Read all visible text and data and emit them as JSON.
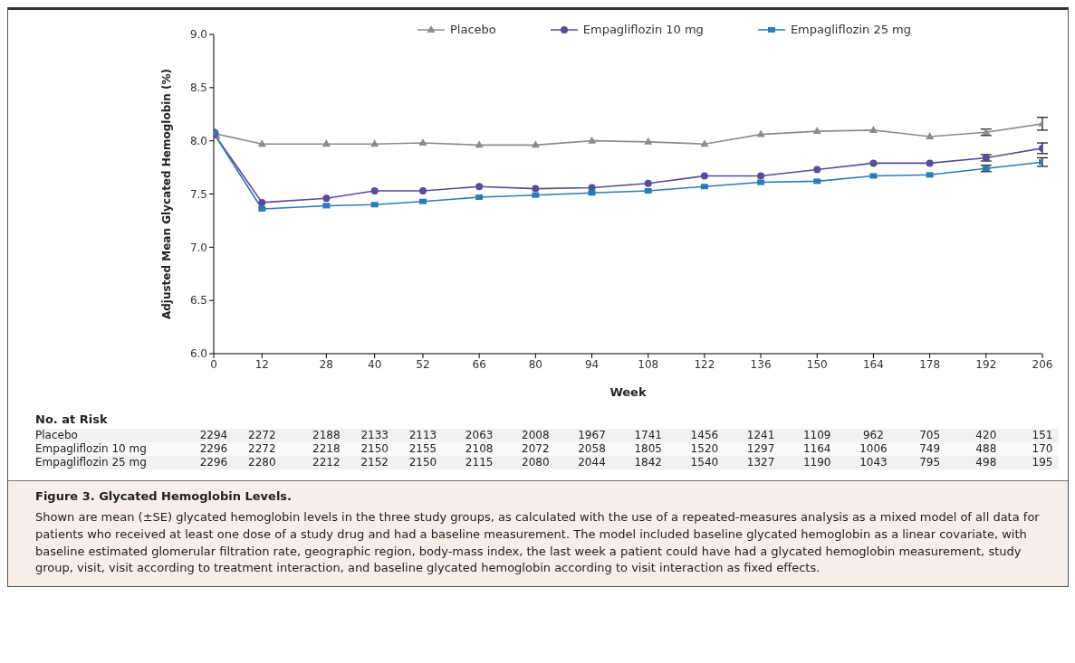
{
  "chart_data": {
    "type": "line",
    "title": "Figure 3. Glycated Hemoglobin Levels.",
    "xlabel": "Week",
    "ylabel": "Adjusted Mean Glycated Hemoglobin (%)",
    "x": [
      0,
      12,
      28,
      40,
      52,
      66,
      80,
      94,
      108,
      122,
      136,
      150,
      164,
      178,
      192,
      206
    ],
    "xlim": [
      0,
      206
    ],
    "xticks": [
      0,
      12,
      28,
      40,
      52,
      66,
      80,
      94,
      108,
      122,
      136,
      150,
      164,
      178,
      192,
      206
    ],
    "ylim": [
      6.0,
      9.0
    ],
    "yticks": [
      {
        "value": 6.0,
        "label": "6.0"
      },
      {
        "value": 6.5,
        "label": "6.5"
      },
      {
        "value": 7.0,
        "label": "7.0"
      },
      {
        "value": 7.5,
        "label": "7.5"
      },
      {
        "value": 8.0,
        "label": "8.0"
      },
      {
        "value": 8.5,
        "label": "8.5"
      },
      {
        "value": 9.0,
        "label": "9.0"
      }
    ],
    "legend": "top",
    "grid": false,
    "line_style": "solid",
    "series": [
      {
        "name": "Placebo",
        "color": "#8c8c8c",
        "marker": "triangle",
        "values": [
          8.07,
          7.97,
          7.97,
          7.97,
          7.98,
          7.96,
          7.96,
          8.0,
          7.99,
          7.97,
          8.06,
          8.09,
          8.1,
          8.04,
          8.08,
          8.16
        ],
        "errors": [
          null,
          null,
          null,
          null,
          null,
          null,
          null,
          null,
          null,
          null,
          null,
          null,
          null,
          null,
          0.03,
          0.06
        ]
      },
      {
        "name": "Empagliflozin 10 mg",
        "color": "#5a4a97",
        "marker": "circle",
        "values": [
          8.07,
          7.42,
          7.46,
          7.53,
          7.53,
          7.57,
          7.55,
          7.56,
          7.6,
          7.67,
          7.67,
          7.73,
          7.79,
          7.79,
          7.84,
          7.93
        ],
        "errors": [
          null,
          null,
          null,
          null,
          null,
          null,
          null,
          null,
          null,
          null,
          null,
          null,
          null,
          null,
          0.03,
          0.05
        ]
      },
      {
        "name": "Empagliflozin 25 mg",
        "color": "#2a7cb9",
        "marker": "square",
        "values": [
          8.07,
          7.36,
          7.39,
          7.4,
          7.43,
          7.47,
          7.49,
          7.51,
          7.53,
          7.57,
          7.61,
          7.62,
          7.67,
          7.68,
          7.74,
          7.8
        ],
        "errors": [
          null,
          null,
          null,
          null,
          null,
          null,
          null,
          null,
          null,
          null,
          null,
          null,
          null,
          null,
          0.03,
          0.04
        ]
      }
    ],
    "annotations": [
      "No. at Risk",
      "Placebo",
      "2294 2272 2188 2133 2113 2063 2008 1967 1741 1456 1241 1109 962 705 420 151",
      "Empagliflozin 10 mg",
      "2296 2272 2218 2150 2155 2108 2072 2058 1805 1520 1297 1164 1006 749 488 170",
      "Empagliflozin 25 mg",
      "2296 2280 2212 2152 2150 2115 2080 2044 1842 1540 1327 1190 1043 795 498 195",
      "Shown are mean (±SE) glycated hemoglobin levels in the three study groups, as calculated with the use of a repeated-measures analysis as a mixed model of all data for patients who received at least one dose of a study drug and had a baseline measurement. The model included baseline glycated hemoglobin as a linear covariate, with baseline estimated glomerular filtration rate, geographic region, body-mass index, the last week a patient could have had a glycated hemoglobin measurement, study group, visit, visit according to treatment interaction, and baseline glycated hemoglobin according to visit interaction as fixed effects."
    ]
  }
}
